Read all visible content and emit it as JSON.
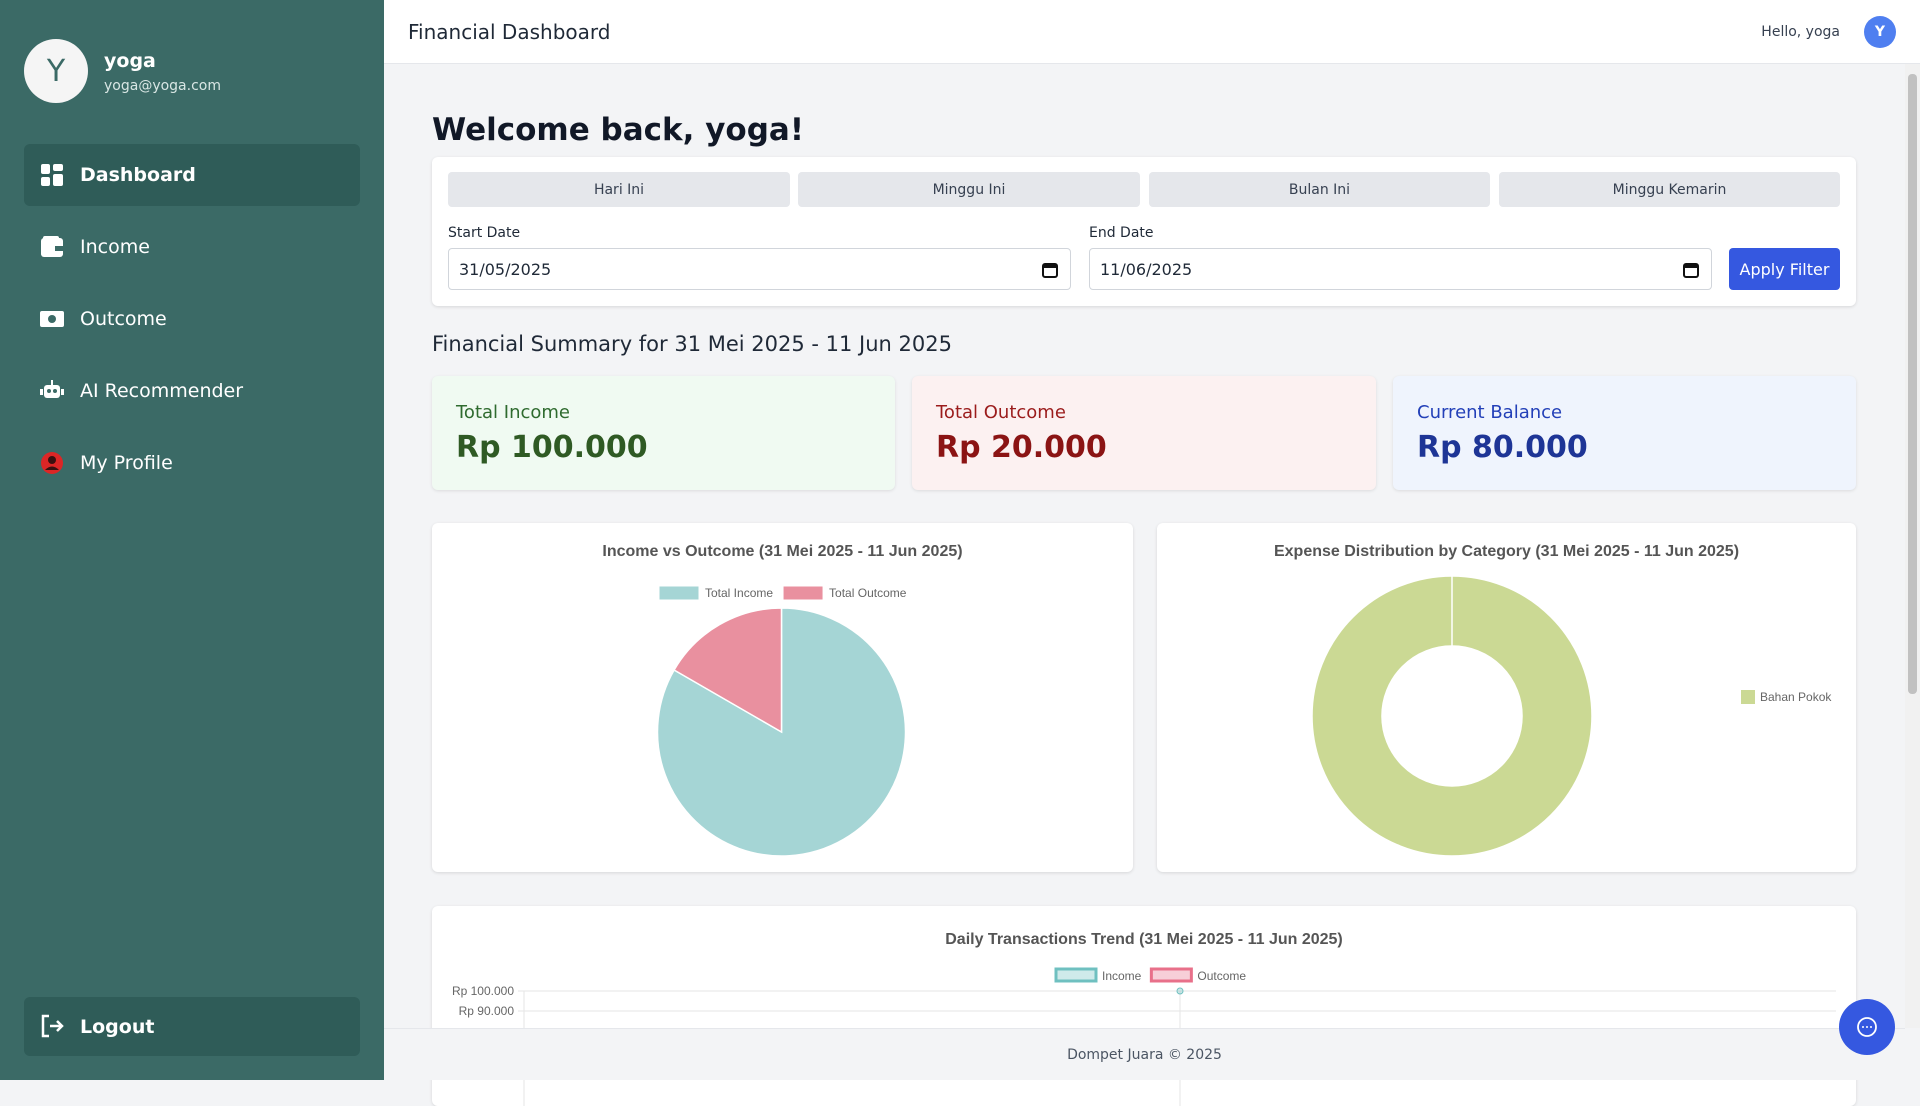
{
  "sidebar": {
    "avatar_initial": "Y",
    "user_name": "yoga",
    "user_email": "yoga@yoga.com",
    "nav": [
      "Dashboard",
      "Income",
      "Outcome",
      "AI Recommender",
      "My Profile"
    ],
    "logout": "Logout"
  },
  "header": {
    "title": "Financial Dashboard",
    "greeting": "Hello, yoga",
    "avatar_initial": "Y"
  },
  "welcome": "Welcome back, yoga!",
  "filter": {
    "quick": [
      "Hari Ini",
      "Minggu Ini",
      "Bulan Ini",
      "Minggu Kemarin"
    ],
    "start_label": "Start Date",
    "start_value": "31/05/2025",
    "end_label": "End Date",
    "end_value": "11/06/2025",
    "apply": "Apply Filter"
  },
  "summary": {
    "title": "Financial Summary for 31 Mei 2025 - 11 Jun 2025",
    "cards": [
      {
        "label": "Total Income",
        "value": "Rp 100.000"
      },
      {
        "label": "Total Outcome",
        "value": "Rp 20.000"
      },
      {
        "label": "Current Balance",
        "value": "Rp 80.000"
      }
    ]
  },
  "footer": "Dompet Juara © 2025",
  "chart_data": [
    {
      "type": "pie",
      "title": "Income vs Outcome (31 Mei 2025 - 11 Jun 2025)",
      "categories": [
        "Total Income",
        "Total Outcome"
      ],
      "values": [
        100000,
        20000
      ],
      "colors": [
        "#a5d5d5",
        "#e9909f"
      ]
    },
    {
      "type": "doughnut",
      "title": "Expense Distribution by Category (31 Mei 2025 - 11 Jun 2025)",
      "categories": [
        "Bahan Pokok"
      ],
      "values": [
        20000
      ],
      "colors": [
        "#cbd994"
      ]
    },
    {
      "type": "line",
      "title": "Daily Transactions Trend (31 Mei 2025 - 11 Jun 2025)",
      "categories": [
        null
      ],
      "series": [
        {
          "name": "Income",
          "color": "#6fc0c0",
          "values": [
            100000
          ]
        },
        {
          "name": "Outcome",
          "color": "#e8708a",
          "values": [
            null
          ]
        }
      ],
      "ylim": [
        0,
        100000
      ],
      "yticks": [
        {
          "value": 100000,
          "label": "Rp 100.000"
        },
        {
          "value": 90000,
          "label": "Rp 90.000"
        }
      ],
      "grid": true
    }
  ]
}
